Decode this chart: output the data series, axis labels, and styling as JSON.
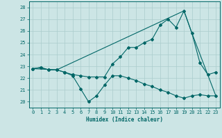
{
  "title": "",
  "xlabel": "Humidex (Indice chaleur)",
  "ylabel": "",
  "xlim": [
    -0.5,
    23.5
  ],
  "ylim": [
    19.5,
    28.5
  ],
  "yticks": [
    20,
    21,
    22,
    23,
    24,
    25,
    26,
    27,
    28
  ],
  "xticks": [
    0,
    1,
    2,
    3,
    4,
    5,
    6,
    7,
    8,
    9,
    10,
    11,
    12,
    13,
    14,
    15,
    16,
    17,
    18,
    19,
    20,
    21,
    22,
    23
  ],
  "bg_color": "#cce5e5",
  "grid_color": "#aacccc",
  "line_color": "#006666",
  "line1_x": [
    0,
    1,
    2,
    3,
    4,
    5,
    6,
    7,
    8,
    9,
    10,
    11,
    12,
    13,
    14,
    15,
    16,
    17,
    18,
    19,
    20,
    21,
    22,
    23
  ],
  "line1_y": [
    22.8,
    22.9,
    22.7,
    22.7,
    22.5,
    22.2,
    21.1,
    20.0,
    20.5,
    21.4,
    22.2,
    22.2,
    22.0,
    21.8,
    21.5,
    21.3,
    21.0,
    20.8,
    20.5,
    20.3,
    20.5,
    20.6,
    20.5,
    20.5
  ],
  "line2_x": [
    0,
    1,
    2,
    3,
    4,
    5,
    6,
    7,
    8,
    9,
    10,
    11,
    12,
    13,
    14,
    15,
    16,
    17,
    18,
    19,
    20,
    21,
    22,
    23
  ],
  "line2_y": [
    22.8,
    22.9,
    22.7,
    22.7,
    22.5,
    22.3,
    22.2,
    22.1,
    22.1,
    22.1,
    23.2,
    23.8,
    24.6,
    24.6,
    25.0,
    25.3,
    26.5,
    27.0,
    26.3,
    27.7,
    25.8,
    23.3,
    22.3,
    22.5
  ],
  "line3_x": [
    0,
    3,
    19,
    20,
    23
  ],
  "line3_y": [
    22.8,
    22.7,
    27.7,
    25.8,
    20.5
  ]
}
